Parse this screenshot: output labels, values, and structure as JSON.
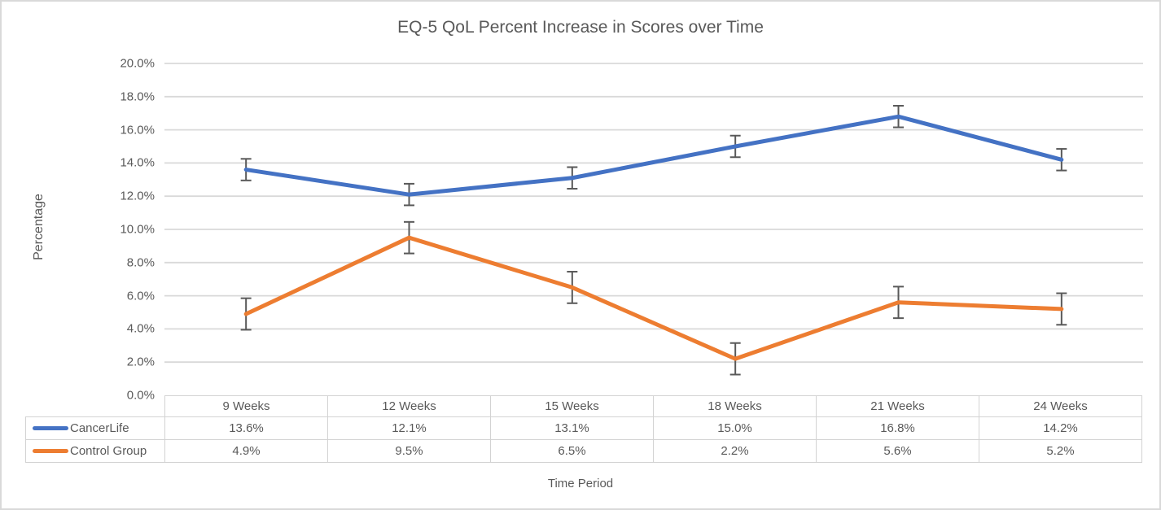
{
  "chart_data": {
    "type": "line",
    "title": "EQ-5 QoL Percent Increase in Scores over Time",
    "xlabel": "Time Period",
    "ylabel": "Percentage",
    "categories": [
      "9 Weeks",
      "12 Weeks",
      "15 Weeks",
      "18 Weeks",
      "21 Weeks",
      "24 Weeks"
    ],
    "series": [
      {
        "name": "CancerLife",
        "color": "#4472C4",
        "values": [
          13.6,
          12.1,
          13.1,
          15.0,
          16.8,
          14.2
        ],
        "display_values": [
          "13.6%",
          "12.1%",
          "13.1%",
          "15.0%",
          "16.8%",
          "14.2%"
        ],
        "error_bar": 0.65
      },
      {
        "name": "Control Group",
        "color": "#ED7D31",
        "values": [
          4.9,
          9.5,
          6.5,
          2.2,
          5.6,
          5.2
        ],
        "display_values": [
          "4.9%",
          "9.5%",
          "6.5%",
          "2.2%",
          "5.6%",
          "5.2%"
        ],
        "error_bar": 0.95
      }
    ],
    "ylim": [
      0,
      20
    ],
    "yticks": [
      {
        "value": 0,
        "label": "0.0%"
      },
      {
        "value": 2,
        "label": "2.0%"
      },
      {
        "value": 4,
        "label": "4.0%"
      },
      {
        "value": 6,
        "label": "6.0%"
      },
      {
        "value": 8,
        "label": "8.0%"
      },
      {
        "value": 10,
        "label": "10.0%"
      },
      {
        "value": 12,
        "label": "12.0%"
      },
      {
        "value": 14,
        "label": "14.0%"
      },
      {
        "value": 16,
        "label": "16.0%"
      },
      {
        "value": 18,
        "label": "18.0%"
      },
      {
        "value": 20,
        "label": "20.0%"
      }
    ],
    "grid": true,
    "legend_position": "data-table-left",
    "colors": {
      "text": "#595959",
      "gridline": "#D9D9D9",
      "error_bar": "#595959",
      "table_border": "#D3D3D3",
      "chart_border": "#D9D9D9"
    }
  }
}
